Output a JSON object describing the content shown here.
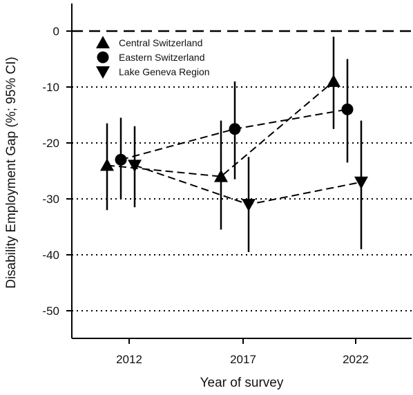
{
  "chart_data": {
    "type": "scatter",
    "xlabel": "Year of survey",
    "ylabel": "Disability Employment Gap (%; 95% CI)",
    "categories": [
      "2012",
      "2017",
      "2022"
    ],
    "y_ticks": [
      "0",
      "-10",
      "-20",
      "-30",
      "-40",
      "-50"
    ],
    "ylim": [
      -55,
      5
    ],
    "grid": "dotted horizontal lines at -10, -20, -30, -40, -50; dashed reference line at 0",
    "legend_position": "top-left",
    "series": [
      {
        "name": "Central Switzerland",
        "marker": "triangle-up",
        "values": [
          -24,
          -26,
          -9
        ],
        "ci_low": [
          -32,
          -35.5,
          -17.5
        ],
        "ci_high": [
          -16.5,
          -16,
          -1
        ]
      },
      {
        "name": "Eastern Switzerland",
        "marker": "circle",
        "values": [
          -23,
          -17.5,
          -14
        ],
        "ci_low": [
          -30,
          -26.5,
          -23.5
        ],
        "ci_high": [
          -15.5,
          -9,
          -5
        ]
      },
      {
        "name": "Lake Geneva Region",
        "marker": "triangle-down",
        "values": [
          -24,
          -31,
          -27
        ],
        "ci_low": [
          -31.5,
          -39.5,
          -39
        ],
        "ci_high": [
          -17,
          -22.5,
          -16
        ]
      }
    ]
  }
}
